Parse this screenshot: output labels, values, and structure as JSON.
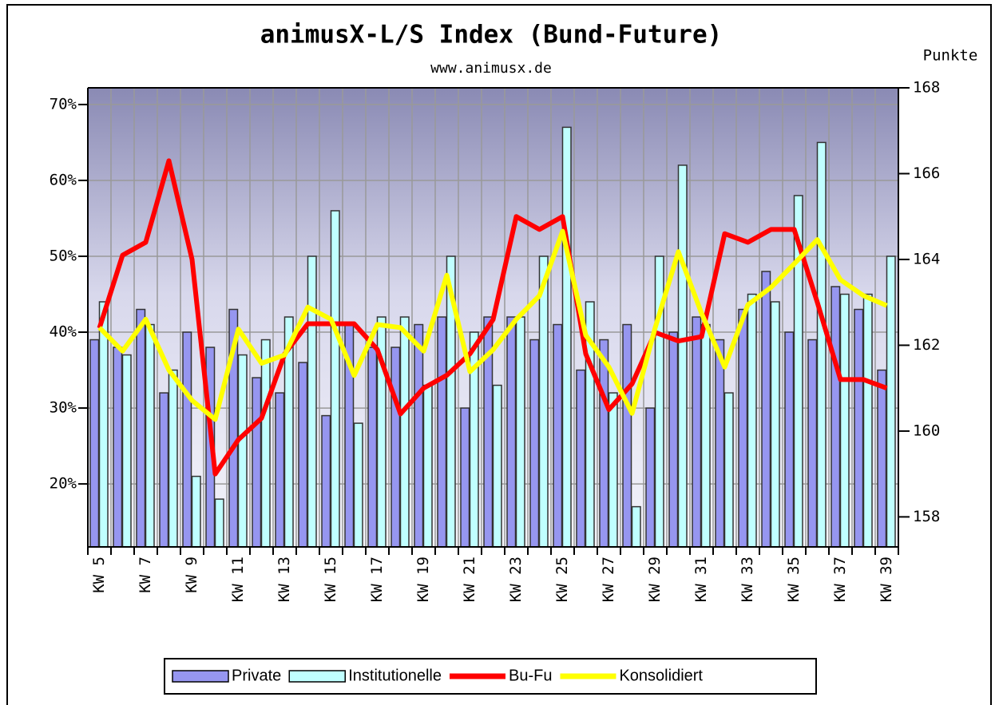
{
  "chart_data": {
    "type": "bar",
    "title": "animusX-L/S Index (Bund-Future)",
    "subtitle": "www.animusx.de",
    "y2_label": "Punkte",
    "categories": [
      "KW 5",
      null,
      "KW 7",
      null,
      "KW 9",
      null,
      "KW 11",
      null,
      "KW 13",
      null,
      "KW 15",
      null,
      "KW 17",
      null,
      "KW 19",
      null,
      "KW 21",
      null,
      "KW 23",
      null,
      "KW 25",
      null,
      "KW 27",
      null,
      "KW 29",
      null,
      "KW 31",
      null,
      "KW 33",
      null,
      "KW 35",
      null,
      "KW 37",
      null,
      "KW 39"
    ],
    "series": [
      {
        "name": "Private",
        "kind": "bar",
        "color": "#9696f0",
        "values": [
          39,
          38,
          43,
          32,
          40,
          38,
          43,
          34,
          32,
          36,
          29,
          41,
          38,
          38,
          41,
          42,
          30,
          42,
          42,
          39,
          41,
          35,
          39,
          41,
          30,
          40,
          42,
          39,
          43,
          48,
          40,
          39,
          46,
          43,
          35
        ]
      },
      {
        "name": "Institutionelle",
        "kind": "bar",
        "color": "#c0ffff",
        "values": [
          44,
          37,
          41,
          35,
          21,
          18,
          37,
          39,
          42,
          50,
          56,
          28,
          42,
          42,
          33,
          50,
          40,
          33,
          42,
          50,
          67,
          44,
          32,
          17,
          50,
          62,
          41,
          32,
          45,
          44,
          58,
          65,
          45,
          45,
          50
        ]
      },
      {
        "name": "Bu-Fu",
        "kind": "line",
        "axis": "y2",
        "color": "#ff0000",
        "values": [
          162.4,
          164.1,
          164.4,
          166.3,
          164.0,
          159.0,
          159.8,
          160.3,
          161.8,
          162.5,
          162.5,
          162.5,
          161.9,
          160.4,
          161.0,
          161.3,
          161.8,
          162.6,
          165.0,
          164.7,
          165.0,
          161.8,
          160.5,
          161.1,
          162.3,
          162.1,
          162.2,
          164.6,
          164.4,
          164.7,
          164.7,
          163.0,
          161.2,
          161.2,
          161.0
        ]
      },
      {
        "name": "Konsolidiert",
        "kind": "line",
        "color": "#ffff00",
        "values": [
          40.6,
          37.5,
          41.7,
          35,
          31,
          28.5,
          40.4,
          35.9,
          37,
          43.3,
          41.7,
          34.3,
          41,
          40.6,
          37.5,
          47.5,
          34.8,
          37.7,
          41.7,
          44.8,
          53.3,
          39.6,
          35.4,
          29.3,
          40.6,
          50.6,
          42.5,
          35.4,
          43.6,
          45.9,
          49,
          52.2,
          46.9,
          44.8,
          43.5
        ]
      }
    ],
    "ylim": [
      11.7,
      72.2
    ],
    "yticks": [
      {
        "value": 20,
        "label": "20%"
      },
      {
        "value": 30,
        "label": "30%"
      },
      {
        "value": 40,
        "label": "40%"
      },
      {
        "value": 50,
        "label": "50%"
      },
      {
        "value": 60,
        "label": "60%"
      },
      {
        "value": 70,
        "label": "70%"
      }
    ],
    "y2lim": [
      157.3,
      168
    ],
    "y2ticks": [
      158,
      160,
      162,
      164,
      166,
      168
    ],
    "grid": true
  }
}
